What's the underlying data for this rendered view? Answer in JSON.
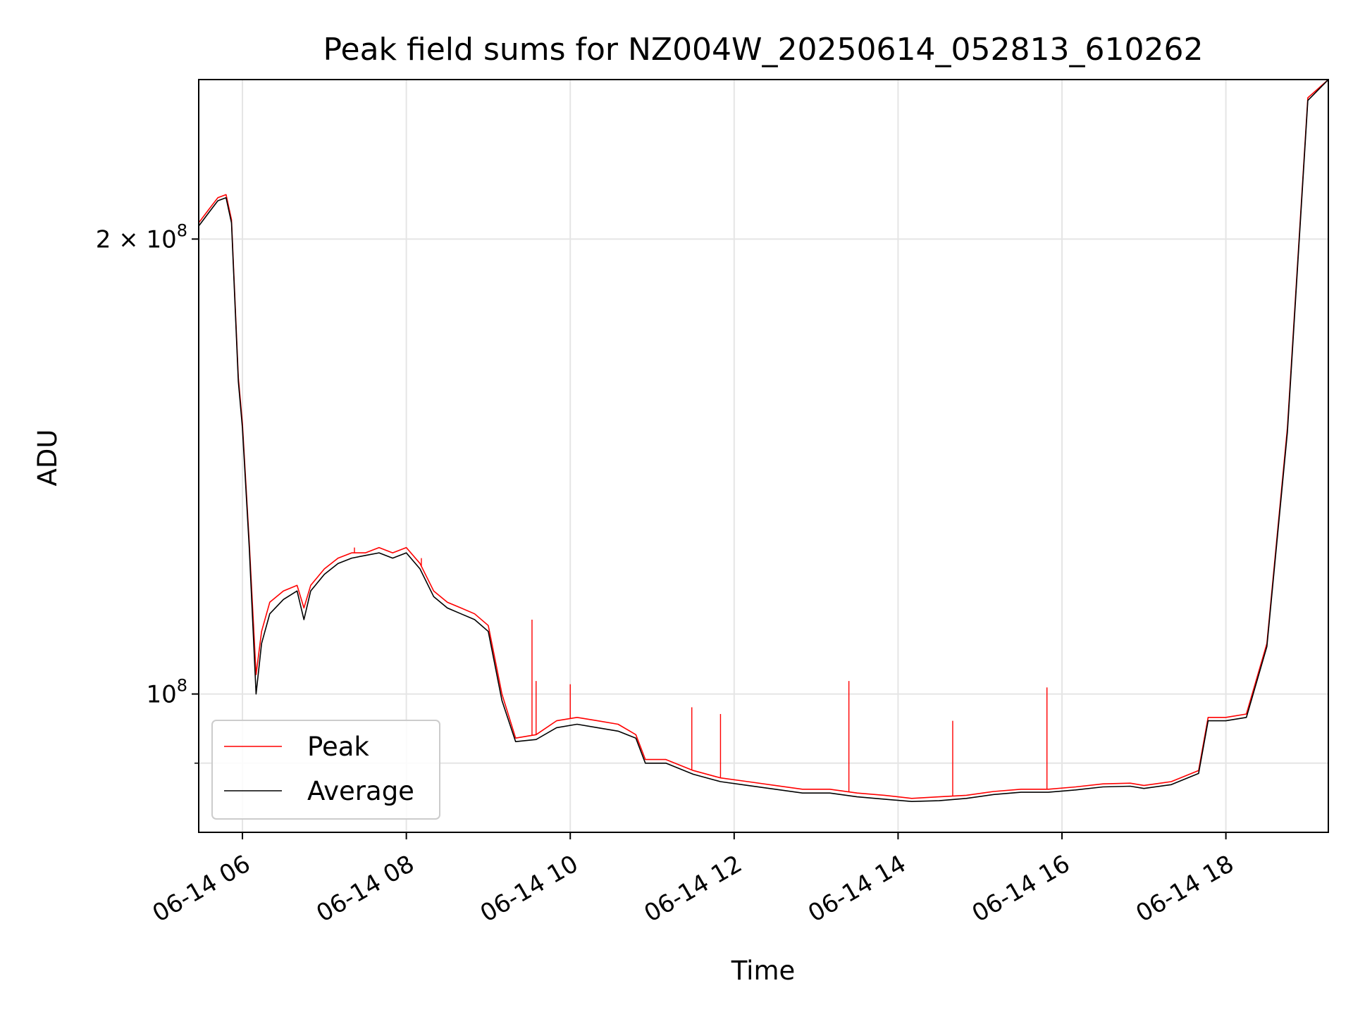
{
  "chart_data": {
    "type": "line",
    "title": "Peak field sums for NZ004W_20250614_052813_610262",
    "xlabel": "Time",
    "ylabel": "ADU",
    "y_scale": "log",
    "xlim": [
      "06-14 05:28",
      "06-14 19:15"
    ],
    "ylim": [
      81000000,
      255000000
    ],
    "grid": true,
    "legend_position": "lower-left",
    "x_ticks": [
      "06-14 06",
      "06-14 08",
      "06-14 10",
      "06-14 12",
      "06-14 14",
      "06-14 16",
      "06-14 18"
    ],
    "y_ticks": [
      {
        "value": 100000000,
        "label": "10^8",
        "base": "10",
        "exp": "8"
      },
      {
        "value": 200000000,
        "label": "2×10^8",
        "base": "2 × 10",
        "exp": "8"
      }
    ],
    "y_minor_ticks": [
      90000000
    ],
    "series": [
      {
        "name": "Peak",
        "color": "#ff0000",
        "x": [
          "05:28",
          "05:35",
          "05:42",
          "05:48",
          "05:52",
          "05:57",
          "06:00",
          "06:05",
          "06:10",
          "06:14",
          "06:20",
          "06:30",
          "06:40",
          "06:45",
          "06:50",
          "07:00",
          "07:10",
          "07:20",
          "07:30",
          "07:40",
          "07:50",
          "08:00",
          "08:10",
          "08:20",
          "08:30",
          "08:40",
          "08:50",
          "09:00",
          "09:10",
          "09:20",
          "09:35",
          "09:50",
          "10:05",
          "10:20",
          "10:35",
          "10:48",
          "10:55",
          "11:10",
          "11:30",
          "11:50",
          "12:10",
          "12:30",
          "12:50",
          "13:10",
          "13:30",
          "13:50",
          "14:10",
          "14:30",
          "14:50",
          "15:10",
          "15:30",
          "15:50",
          "16:10",
          "16:30",
          "16:50",
          "17:00",
          "17:20",
          "17:40",
          "17:47",
          "18:00",
          "18:15",
          "18:30",
          "18:45",
          "19:00",
          "19:15"
        ],
        "y": [
          205000000,
          209000000,
          213000000,
          214000000,
          206000000,
          162000000,
          151000000,
          126000000,
          103000000,
          110000000,
          115000000,
          117000000,
          118000000,
          114000000,
          118000000,
          121000000,
          123000000,
          124000000,
          124000000,
          125000000,
          124000000,
          125000000,
          122000000,
          117000000,
          115000000,
          114000000,
          113000000,
          111000000,
          100000000,
          93500000,
          94000000,
          96000000,
          96500000,
          96000000,
          95500000,
          94000000,
          90500000,
          90500000,
          89000000,
          88000000,
          87500000,
          87000000,
          86500000,
          86500000,
          86000000,
          85700000,
          85300000,
          85500000,
          85700000,
          86200000,
          86500000,
          86500000,
          86800000,
          87200000,
          87300000,
          87000000,
          87500000,
          89000000,
          96500000,
          96500000,
          97000000,
          108000000,
          150000000,
          248000000,
          255000000
        ]
      },
      {
        "name": "Average",
        "color": "#000000",
        "x": [
          "05:28",
          "05:35",
          "05:42",
          "05:48",
          "05:52",
          "05:57",
          "06:00",
          "06:05",
          "06:10",
          "06:14",
          "06:20",
          "06:30",
          "06:40",
          "06:45",
          "06:50",
          "07:00",
          "07:10",
          "07:20",
          "07:30",
          "07:40",
          "07:50",
          "08:00",
          "08:10",
          "08:20",
          "08:30",
          "08:40",
          "08:50",
          "09:00",
          "09:10",
          "09:20",
          "09:35",
          "09:50",
          "10:05",
          "10:20",
          "10:35",
          "10:48",
          "10:55",
          "11:10",
          "11:30",
          "11:50",
          "12:10",
          "12:30",
          "12:50",
          "13:10",
          "13:30",
          "13:50",
          "14:10",
          "14:30",
          "14:50",
          "15:10",
          "15:30",
          "15:50",
          "16:10",
          "16:30",
          "16:50",
          "17:00",
          "17:20",
          "17:40",
          "17:47",
          "18:00",
          "18:15",
          "18:30",
          "18:45",
          "19:00",
          "19:15"
        ],
        "y": [
          204000000,
          208000000,
          212000000,
          213000000,
          205000000,
          161000000,
          150000000,
          125000000,
          100000000,
          108000000,
          113000000,
          115500000,
          117000000,
          112000000,
          117000000,
          120000000,
          122000000,
          123000000,
          123500000,
          124000000,
          123000000,
          124000000,
          121000000,
          116000000,
          114000000,
          113000000,
          112000000,
          110000000,
          99000000,
          93000000,
          93300000,
          95000000,
          95500000,
          95000000,
          94500000,
          93500000,
          90000000,
          90000000,
          88500000,
          87500000,
          87000000,
          86500000,
          86000000,
          86000000,
          85500000,
          85200000,
          84900000,
          85000000,
          85300000,
          85800000,
          86100000,
          86100000,
          86400000,
          86800000,
          86900000,
          86600000,
          87100000,
          88600000,
          96000000,
          96000000,
          96500000,
          107500000,
          149000000,
          247000000,
          255000000
        ]
      }
    ],
    "spikes": [
      {
        "series": "Peak",
        "x": "07:22",
        "y": 125000000
      },
      {
        "series": "Peak",
        "x": "08:11",
        "y": 123000000
      },
      {
        "series": "Peak",
        "x": "09:32",
        "y": 112000000
      },
      {
        "series": "Peak",
        "x": "09:35",
        "y": 102000000
      },
      {
        "series": "Peak",
        "x": "10:00",
        "y": 101500000
      },
      {
        "series": "Peak",
        "x": "11:29",
        "y": 98000000
      },
      {
        "series": "Peak",
        "x": "11:50",
        "y": 97000000
      },
      {
        "series": "Peak",
        "x": "13:24",
        "y": 102000000
      },
      {
        "series": "Peak",
        "x": "14:40",
        "y": 96000000
      },
      {
        "series": "Peak",
        "x": "15:49",
        "y": 101000000
      }
    ]
  }
}
